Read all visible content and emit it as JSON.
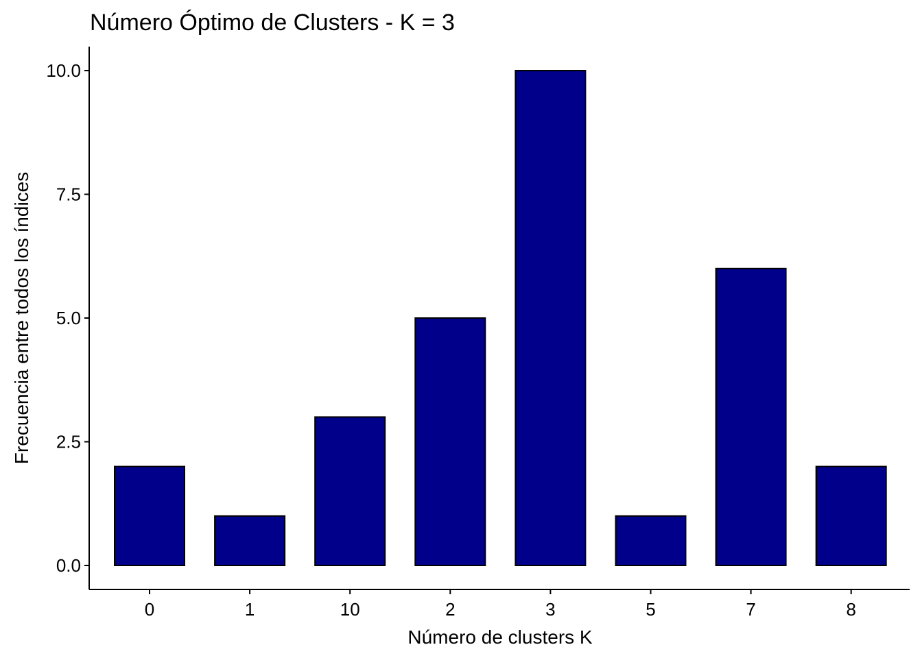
{
  "chart_data": {
    "type": "bar",
    "title": "Número Óptimo de Clusters - K = 3",
    "xlabel": "Número de clusters K",
    "ylabel": "Frecuencia entre todos los índices",
    "categories": [
      "0",
      "1",
      "10",
      "2",
      "3",
      "5",
      "7",
      "8"
    ],
    "values": [
      2,
      1,
      3,
      5,
      10,
      1,
      6,
      2
    ],
    "ylim": [
      0,
      10.5
    ],
    "yticks": [
      0.0,
      2.5,
      5.0,
      7.5,
      10.0
    ],
    "ytick_labels": [
      "0.0",
      "2.5",
      "5.0",
      "7.5",
      "10.0"
    ],
    "bar_color": "#00008B",
    "grid": false,
    "legend": "none"
  }
}
